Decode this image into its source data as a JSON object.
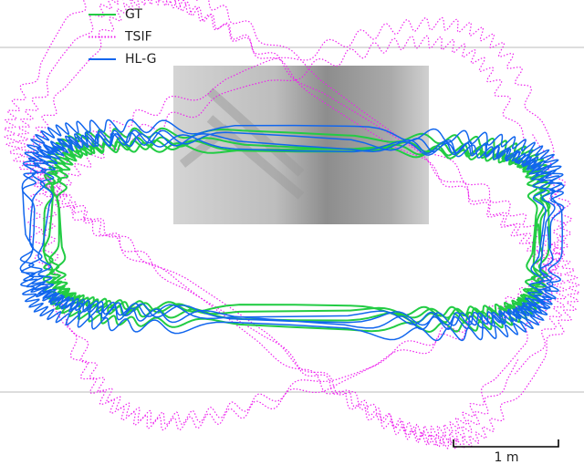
{
  "legend": [
    {
      "name": "GT",
      "color": "#22cc44",
      "dash": "solid"
    },
    {
      "name": "TSIF",
      "color": "#ee22ee",
      "dash": "dotted"
    },
    {
      "name": "HL-G",
      "color": "#1166ee",
      "dash": "solid"
    }
  ],
  "scale_bar": {
    "label": "1 m"
  }
}
